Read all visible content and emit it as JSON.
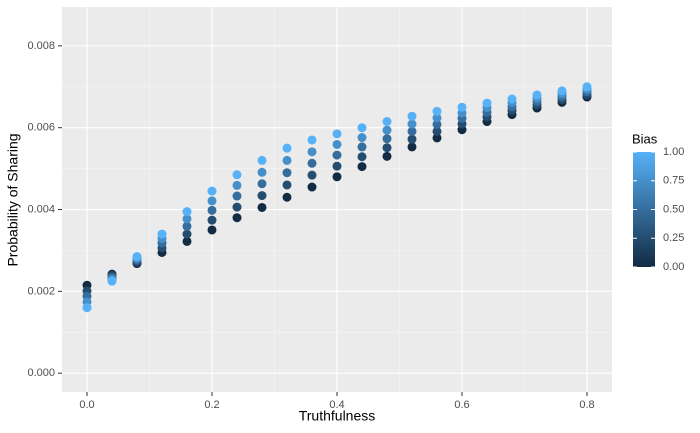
{
  "chart_data": {
    "type": "scatter",
    "x_label": "Truthfulness",
    "y_label": "Probability of Sharing",
    "legend_title": "Bias",
    "colorscale": [
      "#132B43",
      "#56B1F7"
    ],
    "legend_ticks": [
      {
        "value": 0,
        "label": "0.00"
      },
      {
        "value": 0.25,
        "label": "0.25"
      },
      {
        "value": 0.5,
        "label": "0.50"
      },
      {
        "value": 0.75,
        "label": "0.75"
      },
      {
        "value": 1,
        "label": "1.00"
      }
    ],
    "x": [
      0,
      0.04,
      0.08,
      0.12,
      0.16,
      0.2,
      0.24,
      0.28,
      0.32,
      0.36,
      0.4,
      0.44,
      0.48,
      0.52,
      0.56,
      0.6,
      0.64,
      0.68,
      0.72,
      0.76,
      0.8
    ],
    "series": [
      {
        "bias": 0,
        "values": [
          0.00215,
          0.00242,
          0.00268,
          0.00295,
          0.00322,
          0.0035,
          0.0038,
          0.00405,
          0.0043,
          0.00455,
          0.0048,
          0.00505,
          0.0053,
          0.00553,
          0.00575,
          0.00595,
          0.00615,
          0.00632,
          0.00648,
          0.00662,
          0.00675
        ]
      },
      {
        "bias": 0.25,
        "values": [
          0.00201,
          0.00238,
          0.00272,
          0.00306,
          0.0034,
          0.00374,
          0.00406,
          0.00434,
          0.0046,
          0.00484,
          0.00506,
          0.00529,
          0.00551,
          0.00572,
          0.00591,
          0.00609,
          0.00626,
          0.00642,
          0.00656,
          0.00669,
          0.00681
        ]
      },
      {
        "bias": 0.5,
        "values": [
          0.00188,
          0.00234,
          0.00277,
          0.00318,
          0.00359,
          0.00398,
          0.00433,
          0.00463,
          0.0049,
          0.00513,
          0.00533,
          0.00553,
          0.00573,
          0.00591,
          0.00608,
          0.00623,
          0.00638,
          0.00651,
          0.00664,
          0.00676,
          0.00688
        ]
      },
      {
        "bias": 0.75,
        "values": [
          0.00174,
          0.00229,
          0.00281,
          0.00329,
          0.00377,
          0.00421,
          0.00459,
          0.00491,
          0.0052,
          0.00541,
          0.00559,
          0.00576,
          0.00594,
          0.00609,
          0.00624,
          0.00636,
          0.00649,
          0.00661,
          0.00672,
          0.00683,
          0.00694
        ]
      },
      {
        "bias": 1,
        "values": [
          0.0016,
          0.00225,
          0.00285,
          0.0034,
          0.00395,
          0.00445,
          0.00485,
          0.0052,
          0.0055,
          0.0057,
          0.00585,
          0.006,
          0.00615,
          0.00628,
          0.0064,
          0.0065,
          0.0066,
          0.0067,
          0.0068,
          0.0069,
          0.007
        ]
      }
    ],
    "xlim": [
      -0.04,
      0.84
    ],
    "xticks": [
      {
        "value": 0,
        "label": "0.0"
      },
      0.2,
      0.4,
      0.6,
      {
        "value": 0.8,
        "label": "0.8"
      }
    ],
    "ylim": [
      -0.00046,
      0.00895
    ],
    "yticks": [
      {
        "value": 0,
        "label": "0.000"
      },
      {
        "value": 0.002,
        "label": "0.002"
      },
      {
        "value": 0.004,
        "label": "0.004"
      },
      {
        "value": 0.006,
        "label": "0.006"
      },
      {
        "value": 0.008,
        "label": "0.008"
      }
    ],
    "grid": true
  }
}
